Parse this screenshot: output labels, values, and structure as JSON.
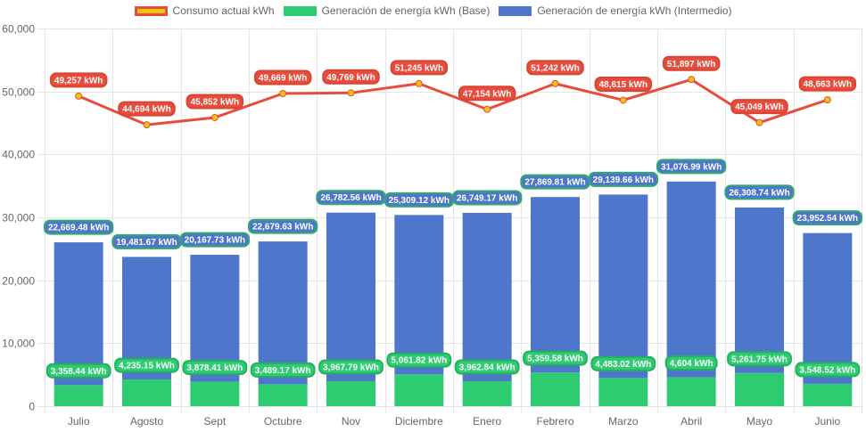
{
  "chart_data": {
    "type": "bar",
    "title": "",
    "xlabel": "",
    "ylabel": "",
    "ylim": [
      0,
      60000
    ],
    "y_ticks": [
      0,
      10000,
      20000,
      30000,
      40000,
      50000,
      60000
    ],
    "y_tick_labels": [
      "0",
      "10,000",
      "20,000",
      "30,000",
      "40,000",
      "50,000",
      "60,000"
    ],
    "grid": true,
    "stacked": true,
    "legend_position": "top",
    "categories": [
      "Julio",
      "Agosto",
      "Sept",
      "Octubre",
      "Nov",
      "Diciembre",
      "Enero",
      "Febrero",
      "Marzo",
      "Abril",
      "Mayo",
      "Junio"
    ],
    "series": [
      {
        "name": "Consumo actual kWh",
        "type": "line",
        "color": "#e74c3c",
        "point_color": "#f1c40f",
        "values": [
          49257,
          44694,
          45852,
          49669,
          49769,
          51245,
          47154,
          51242,
          48615,
          51897,
          45049,
          48663
        ],
        "labels": [
          "49,257 kWh",
          "44,694 kWh",
          "45,852 kWh",
          "49,669 kWh",
          "49,769 kWh",
          "51,245 kWh",
          "47,154 kWh",
          "51,242 kWh",
          "48,615 kWh",
          "51,897 kWh",
          "45,049 kWh",
          "48,663 kWh"
        ]
      },
      {
        "name": "Generación de energía kWh (Base)",
        "type": "bar",
        "color": "#2ecc71",
        "values": [
          3358.44,
          4235.15,
          3878.41,
          3489.17,
          3967.79,
          5061.82,
          3962.84,
          5359.58,
          4483.02,
          4604,
          5261.75,
          3548.52
        ],
        "labels": [
          "3,358.44 kWh",
          "4,235.15 kWh",
          "3,878.41 kWh",
          "3,489.17 kWh",
          "3,967.79 kWh",
          "5,061.82 kWh",
          "3,962.84 kWh",
          "5,359.58 kWh",
          "4,483.02 kWh",
          "4,604 kWh",
          "5,261.75 kWh",
          "3,548.52 kWh"
        ]
      },
      {
        "name": "Generación de energía kWh (Intermedio)",
        "type": "bar",
        "color": "#4e77cb",
        "values": [
          22669.48,
          19481.67,
          20167.73,
          22679.63,
          26782.56,
          25309.12,
          26749.17,
          27869.81,
          29139.66,
          31076.99,
          26308.74,
          23952.54
        ],
        "labels": [
          "22,669.48 kWh",
          "19,481.67 kWh",
          "20,167.73 kWh",
          "22,679.63 kWh",
          "26,782.56 kWh",
          "25,309.12 kWh",
          "26,749.17 kWh",
          "27,869.81 kWh",
          "29,139.66 kWh",
          "31,076.99 kWh",
          "26,308.74 kWh",
          "23,952.54 kWh"
        ]
      }
    ]
  },
  "legend": {
    "items": [
      {
        "label": "Consumo actual kWh",
        "fill": "#f1c40f",
        "border": "#e74c3c"
      },
      {
        "label": "Generación de energía kWh (Base)",
        "fill": "#2ecc71",
        "border": "#2ecc71"
      },
      {
        "label": "Generación de energía kWh (Intermedio)",
        "fill": "#4e77cb",
        "border": "#4e77cb"
      }
    ]
  },
  "colors": {
    "grid": "#e5e5e5",
    "axis_text": "#666666",
    "label_border_bars": "#2eaa6a"
  }
}
